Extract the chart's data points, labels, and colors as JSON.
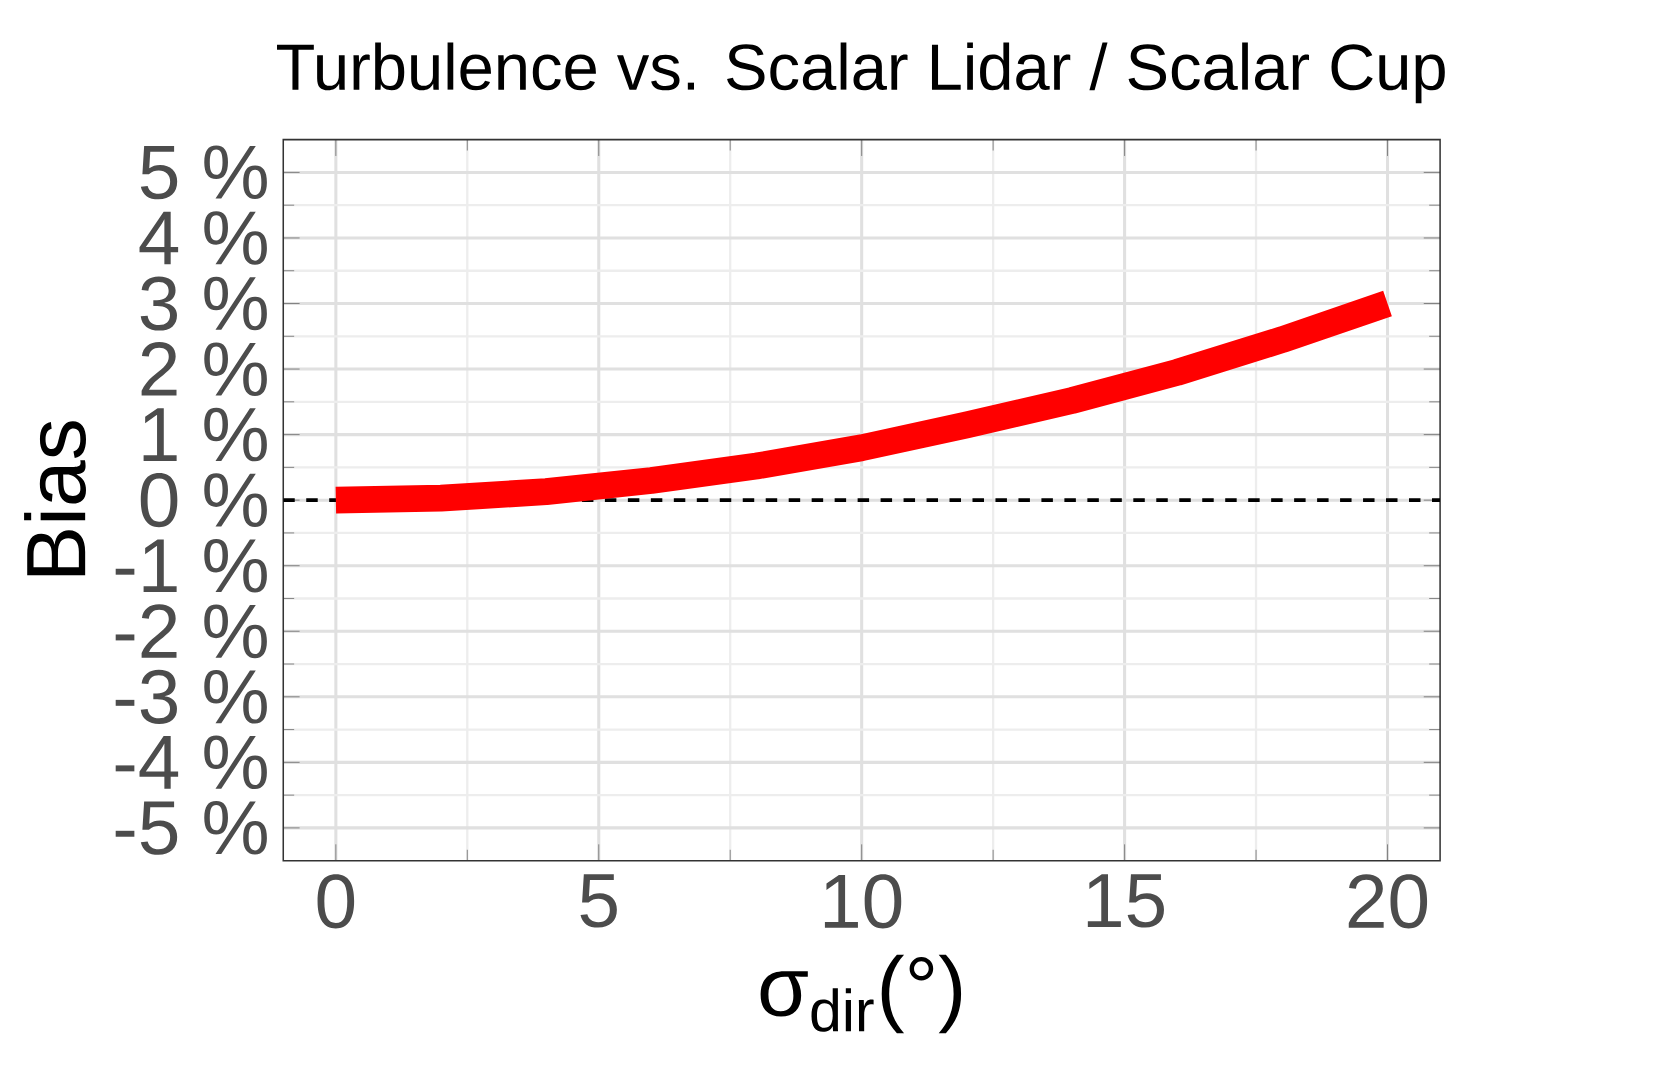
{
  "chart_data": {
    "type": "line",
    "title": "Turbulence vs. Scalar Lidar / Scalar Cup",
    "xlabel": "σ$_{dir}$(°)",
    "ylabel": "Bias",
    "x": [
      0,
      2,
      4,
      6,
      8,
      10,
      12,
      14,
      16,
      18,
      20
    ],
    "series": [
      {
        "color": "#ff0000",
        "values": [
          0,
          0.03,
          0.13,
          0.3,
          0.52,
          0.8,
          1.15,
          1.52,
          1.95,
          2.45,
          3.0
        ]
      }
    ],
    "xlim": [
      -1,
      21
    ],
    "xticks": [
      0,
      5,
      10,
      15,
      20
    ],
    "ylim": [
      -5.5,
      5.5
    ],
    "yticks": [
      {
        "value": -5,
        "label": "-5 %"
      },
      {
        "value": -4,
        "label": "-4 %"
      },
      {
        "value": -3,
        "label": "-3 %"
      },
      {
        "value": -2,
        "label": "-2 %"
      },
      {
        "value": -1,
        "label": "-1 %"
      },
      {
        "value": 0,
        "label": "0 %"
      },
      {
        "value": 1,
        "label": "1 %"
      },
      {
        "value": 2,
        "label": "2 %"
      },
      {
        "value": 3,
        "label": "3 %"
      },
      {
        "value": 4,
        "label": "4 %"
      },
      {
        "value": 5,
        "label": "5 %"
      }
    ],
    "ref_lines": [
      {
        "axis": "y",
        "value": 0,
        "color": "#000000",
        "line_style": "dashed"
      }
    ],
    "grid": true,
    "marker": "none",
    "line_style": "solid"
  }
}
